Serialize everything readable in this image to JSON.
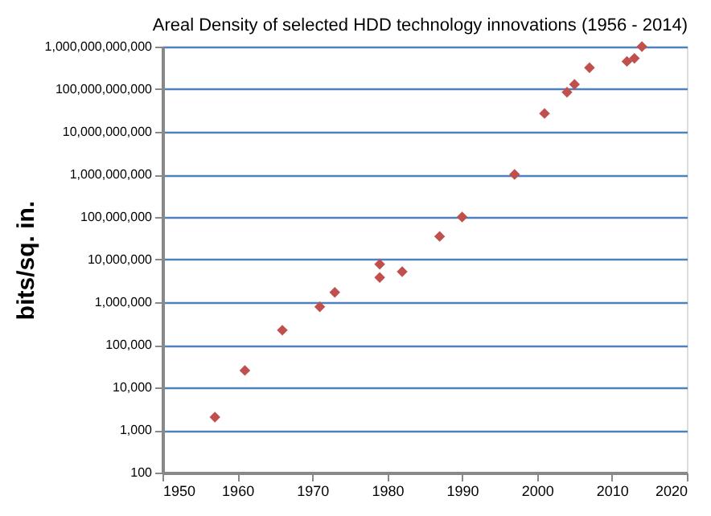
{
  "chart_data": {
    "type": "scatter",
    "title": "Areal Density of selected HDD technology innovations (1956 - 2014)",
    "ylabel": "bits/sq. in.",
    "x": [
      1957,
      1961,
      1966,
      1971,
      1973,
      1979,
      1979,
      1982,
      1987,
      1990,
      1997,
      2001,
      2004,
      2005,
      2007,
      2012,
      2013,
      2014
    ],
    "series": [
      {
        "color": "#c0504d",
        "values": [
          2000,
          25000,
          220000,
          780000,
          1700000,
          7800000,
          3800000,
          5200000,
          35000000,
          100000000,
          1000000000,
          27000000000,
          85000000000,
          130000000000,
          320000000000,
          450000000000,
          530000000000,
          1000000000000
        ]
      }
    ],
    "log": "y",
    "xlim": [
      1950,
      2020
    ],
    "xticks": [
      1950,
      1960,
      1970,
      1980,
      1990,
      2000,
      2010,
      2020
    ],
    "ylim": [
      100,
      1000000000000
    ],
    "yticks": [
      {
        "value": 100,
        "label": "100"
      },
      {
        "value": 1000,
        "label": "1,000"
      },
      {
        "value": 10000,
        "label": "10,000"
      },
      {
        "value": 100000,
        "label": "100,000"
      },
      {
        "value": 1000000,
        "label": "1,000,000"
      },
      {
        "value": 10000000,
        "label": "10,000,000"
      },
      {
        "value": 100000000,
        "label": "100,000,000"
      },
      {
        "value": 1000000000,
        "label": "1,000,000,000"
      },
      {
        "value": 10000000000,
        "label": "10,000,000,000"
      },
      {
        "value": 100000000000,
        "label": "100,000,000,000"
      },
      {
        "value": 1000000000000,
        "label": "1,000,000,000,000"
      }
    ],
    "grid": "y",
    "marker": "diamond",
    "legend": false
  }
}
